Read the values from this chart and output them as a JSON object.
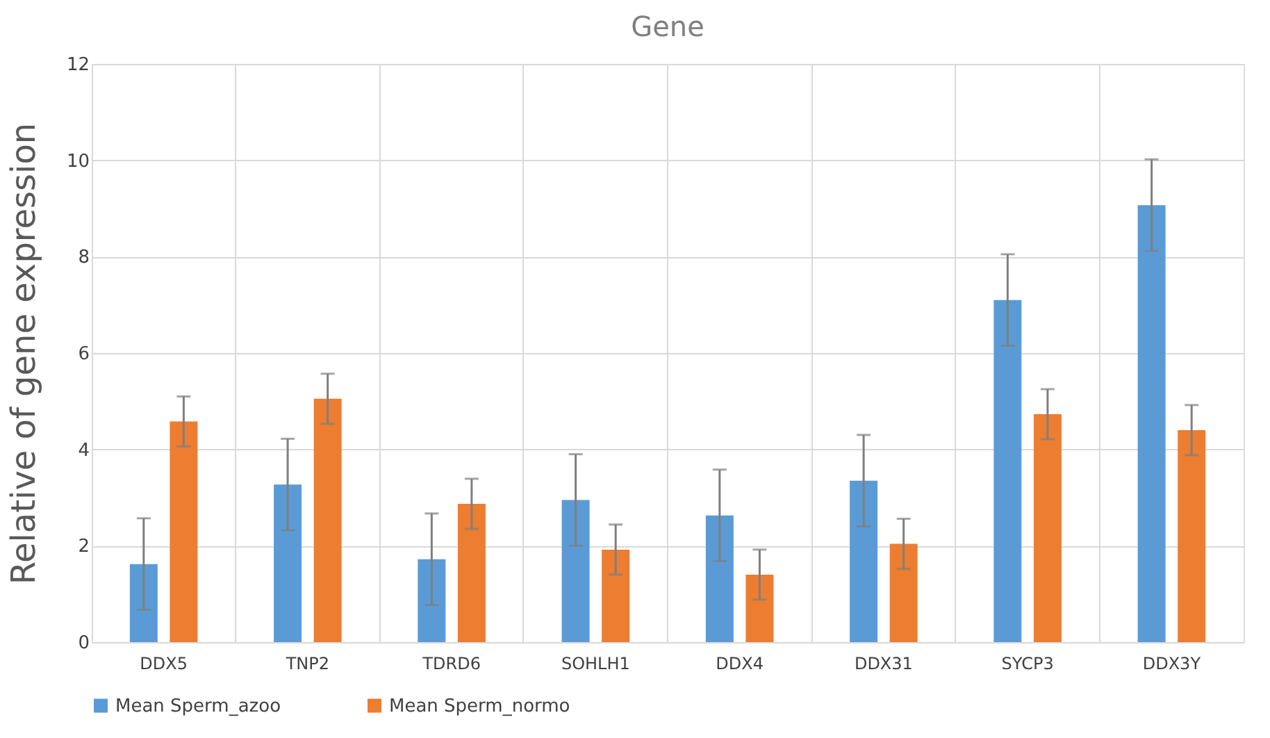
{
  "chart_data": {
    "type": "bar",
    "title": "Gene",
    "ylabel": "Relative of gene expression",
    "categories": [
      "DDX5",
      "TNP2",
      "TDRD6",
      "SOHLH1",
      "DDX4",
      "DDX31",
      "SYCP3",
      "DDX3Y"
    ],
    "series": [
      {
        "name": "Mean Sperm_azoo",
        "color": "#5b9bd5",
        "values": [
          1.62,
          3.27,
          1.72,
          2.95,
          2.63,
          3.35,
          7.1,
          9.07
        ],
        "errors": [
          0.95,
          0.95,
          0.95,
          0.95,
          0.95,
          0.95,
          0.95,
          0.95
        ]
      },
      {
        "name": "Mean Sperm_normo",
        "color": "#ed7d31",
        "values": [
          4.58,
          5.05,
          2.87,
          1.92,
          1.4,
          2.04,
          4.73,
          4.4
        ],
        "errors": [
          0.52,
          0.52,
          0.52,
          0.52,
          0.52,
          0.52,
          0.52,
          0.52
        ]
      }
    ],
    "ylim": [
      0,
      12
    ],
    "yticks": [
      0,
      2,
      4,
      6,
      8,
      10,
      12
    ],
    "grid": true,
    "legend": "bottom"
  }
}
